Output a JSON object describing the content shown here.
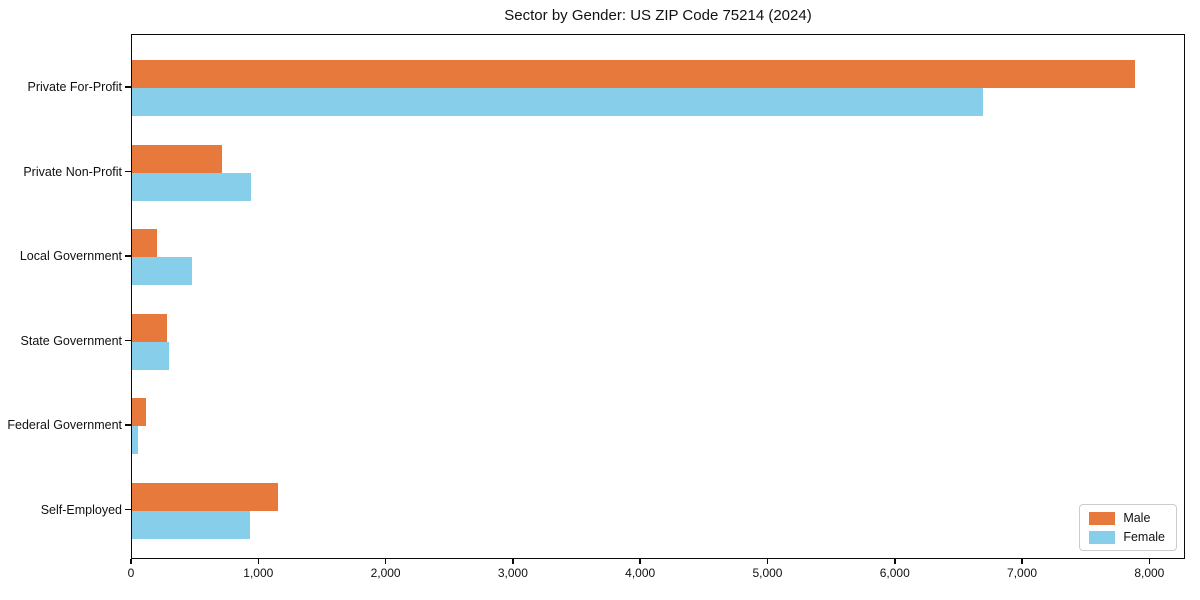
{
  "chart_data": {
    "type": "bar",
    "orientation": "horizontal",
    "title": "Sector by Gender: US ZIP Code 75214 (2024)",
    "categories": [
      "Private For-Profit",
      "Private Non-Profit",
      "Local Government",
      "State Government",
      "Federal Government",
      "Self-Employed"
    ],
    "series": [
      {
        "name": "Male",
        "color": "#e8793c",
        "values": [
          7890,
          715,
          205,
          290,
          125,
          1155
        ]
      },
      {
        "name": "Female",
        "color": "#87ceeb",
        "values": [
          6700,
          945,
          480,
          305,
          55,
          935
        ]
      }
    ],
    "xlabel": "",
    "ylabel": "",
    "xlim": [
      0,
      8280
    ],
    "xticks": [
      0,
      1000,
      2000,
      3000,
      4000,
      5000,
      6000,
      7000,
      8000
    ],
    "xtick_labels": [
      "0",
      "1,000",
      "2,000",
      "3,000",
      "4,000",
      "5,000",
      "6,000",
      "7,000",
      "8,000"
    ],
    "grid": false,
    "legend": {
      "position": "lower right"
    }
  }
}
